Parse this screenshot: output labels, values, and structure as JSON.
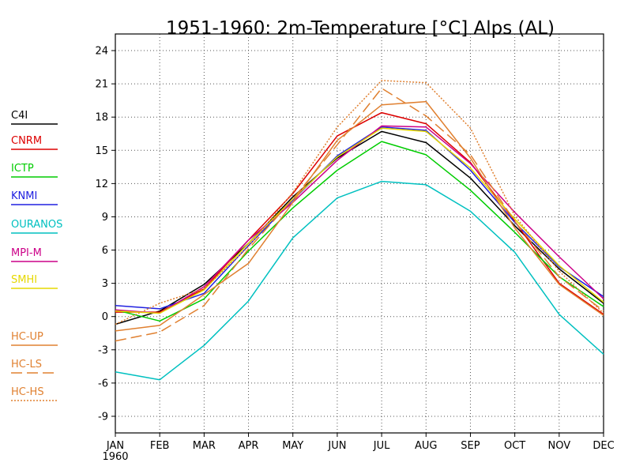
{
  "chart_data": {
    "type": "line",
    "title": "1951-1960: 2m-Temperature [°C] Alps (AL)",
    "x_year_label": "1960",
    "categories": [
      "JAN",
      "FEB",
      "MAR",
      "APR",
      "MAY",
      "JUN",
      "JUL",
      "AUG",
      "SEP",
      "OCT",
      "NOV",
      "DEC"
    ],
    "y_ticks": [
      -9,
      -6,
      -3,
      0,
      3,
      6,
      9,
      12,
      15,
      18,
      21,
      24
    ],
    "ylim": [
      -10.5,
      25.5
    ],
    "grid": true,
    "legend_position": "left",
    "series": [
      {
        "name": "C4I",
        "color": "#000000",
        "dash": "solid",
        "values": [
          -0.7,
          0.5,
          2.9,
          6.6,
          10.8,
          14.3,
          16.7,
          15.7,
          12.5,
          8.2,
          4.3,
          1.2
        ]
      },
      {
        "name": "CNRM",
        "color": "#dd0000",
        "dash": "solid",
        "values": [
          0.4,
          0.4,
          2.5,
          6.9,
          11.1,
          16.3,
          18.4,
          17.4,
          13.9,
          8.6,
          3.0,
          0.2
        ]
      },
      {
        "name": "ICTP",
        "color": "#00cc00",
        "dash": "solid",
        "values": [
          0.6,
          -0.4,
          1.6,
          5.9,
          9.8,
          13.2,
          15.8,
          14.6,
          11.4,
          7.6,
          3.6,
          0.9
        ]
      },
      {
        "name": "KNMI",
        "color": "#2020e0",
        "dash": "solid",
        "values": [
          1.0,
          0.7,
          2.1,
          6.4,
          10.5,
          14.5,
          17.1,
          16.8,
          13.2,
          8.5,
          4.5,
          1.8
        ]
      },
      {
        "name": "OURANOS",
        "color": "#00c0c0",
        "dash": "solid",
        "values": [
          -5.0,
          -5.7,
          -2.6,
          1.4,
          7.1,
          10.7,
          12.2,
          11.9,
          9.5,
          5.8,
          0.2,
          -3.4
        ]
      },
      {
        "name": "MPI-M",
        "color": "#cc0088",
        "dash": "solid",
        "values": [
          0.6,
          0.3,
          2.7,
          6.9,
          10.3,
          14.1,
          17.2,
          17.1,
          13.8,
          9.4,
          5.4,
          1.6
        ]
      },
      {
        "name": "SMHI",
        "color": "#e6d800",
        "dash": "solid",
        "values": [
          0.5,
          0.3,
          2.4,
          6.6,
          10.6,
          14.4,
          17.0,
          16.7,
          13.4,
          8.8,
          4.6,
          1.3
        ]
      },
      {
        "name": "HC-UP",
        "color": "#e08030",
        "dash": "solid",
        "values": [
          -1.3,
          -0.8,
          2.0,
          4.8,
          10.3,
          15.9,
          19.1,
          19.4,
          14.3,
          8.0,
          2.9,
          0.1
        ]
      },
      {
        "name": "HC-LS",
        "color": "#e08030",
        "dash": "long",
        "values": [
          -2.2,
          -1.4,
          1.0,
          6.1,
          10.6,
          15.5,
          20.6,
          18.1,
          14.6,
          8.6,
          3.6,
          0.5
        ]
      },
      {
        "name": "HC-HS",
        "color": "#e08030",
        "dash": "dotted",
        "values": [
          -0.7,
          1.2,
          2.5,
          6.3,
          11.2,
          17.1,
          21.3,
          21.1,
          17.0,
          9.1,
          4.1,
          0.3
        ]
      }
    ]
  }
}
